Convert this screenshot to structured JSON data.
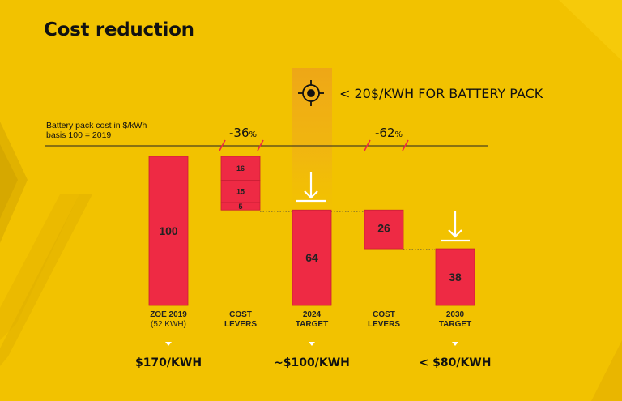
{
  "slide": {
    "title": "Cost reduction",
    "target_statement": "< 20$/KWH FOR BATTERY PACK",
    "target_icon": "crosshair-target-icon",
    "axis_label_line1": "Battery pack cost in $/kWh",
    "axis_label_line2": "basis 100 = 2019",
    "reduction_1": {
      "value": "-36",
      "unit": "%"
    },
    "reduction_2": {
      "value": "-62",
      "unit": "%"
    },
    "categories": [
      {
        "line1": "ZOE 2019",
        "line2": "(52 KWH)"
      },
      {
        "line1": "COST",
        "line2": "LEVERS"
      },
      {
        "line1": "2024",
        "line2": "TARGET"
      },
      {
        "line1": "COST",
        "line2": "LEVERS"
      },
      {
        "line1": "2030",
        "line2": "TARGET"
      }
    ],
    "prices": [
      "$170/KWH",
      "",
      "~$100/KWH",
      "",
      "< $80/KWH"
    ]
  },
  "colors": {
    "background": "#f2c200",
    "bar": "#ee2a44",
    "highlight": "#e8a010",
    "text": "#111111"
  },
  "chart_data": {
    "type": "bar",
    "subtype": "waterfall",
    "categories": [
      "ZOE 2019 (52 KWH)",
      "COST LEVERS",
      "2024 TARGET",
      "COST LEVERS",
      "2030 TARGET"
    ],
    "ylabel": "Battery pack cost in $/kWh",
    "ylim": [
      0,
      100
    ],
    "bars": [
      {
        "category": "ZOE 2019 (52 KWH)",
        "kind": "total",
        "start": 0,
        "end": 100,
        "label": "100"
      },
      {
        "category": "COST LEVERS",
        "kind": "decrease",
        "start": 100,
        "end": 84,
        "label": "16"
      },
      {
        "category": "COST LEVERS",
        "kind": "decrease",
        "start": 84,
        "end": 69,
        "label": "15"
      },
      {
        "category": "COST LEVERS",
        "kind": "decrease",
        "start": 69,
        "end": 64,
        "label": "5"
      },
      {
        "category": "2024 TARGET",
        "kind": "total",
        "start": 0,
        "end": 64,
        "label": "64"
      },
      {
        "category": "COST LEVERS",
        "kind": "decrease",
        "start": 64,
        "end": 38,
        "label": "26"
      },
      {
        "category": "2030 TARGET",
        "kind": "total",
        "start": 0,
        "end": 38,
        "label": "38"
      }
    ],
    "grid": false,
    "legend": "none"
  }
}
